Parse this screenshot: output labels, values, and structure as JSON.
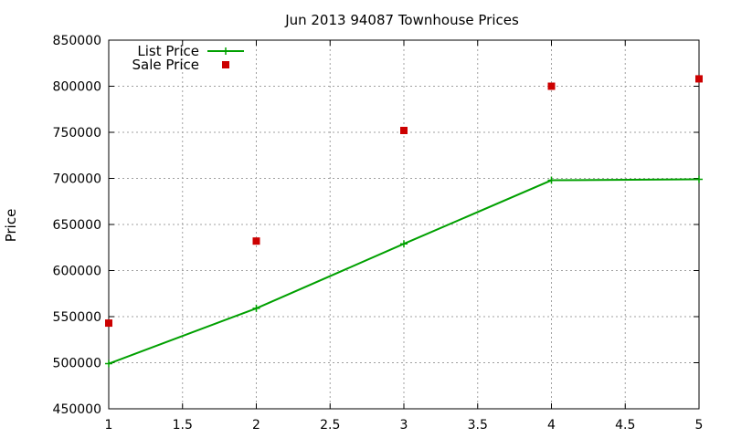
{
  "chart_data": {
    "type": "line",
    "title": "Jun 2013 94087 Townhouse Prices",
    "xlabel": "",
    "ylabel": "Price",
    "xlim": [
      1,
      5
    ],
    "ylim": [
      450000,
      850000
    ],
    "xticks": [
      "1",
      "1.5",
      "2",
      "2.5",
      "3",
      "3.5",
      "4",
      "4.5",
      "5"
    ],
    "yticks": [
      "450000",
      "500000",
      "550000",
      "600000",
      "650000",
      "700000",
      "750000",
      "800000",
      "850000"
    ],
    "grid": true,
    "legend_position": "top-left",
    "series": [
      {
        "name": "List Price",
        "style": "line-with-plus-markers",
        "color": "#00a000",
        "x": [
          1,
          2,
          3,
          4,
          5
        ],
        "values": [
          499000,
          559000,
          629000,
          698000,
          699000
        ]
      },
      {
        "name": "Sale Price",
        "style": "square-markers",
        "color": "#cc0000",
        "x": [
          1,
          2,
          3,
          4,
          5
        ],
        "values": [
          543000,
          632000,
          752000,
          800000,
          808000
        ]
      }
    ]
  }
}
